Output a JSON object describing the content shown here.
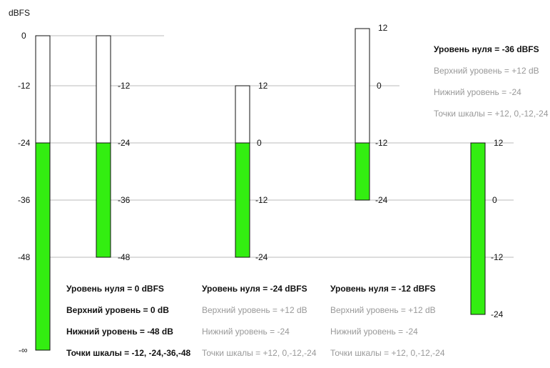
{
  "axis_title": "dBFS",
  "colors": {
    "fill": "#33ee11",
    "grid": "#bbbbbb",
    "bar_border": "#111111",
    "muted_text": "#999999"
  },
  "left_scale": [
    "0",
    "-12",
    "-24",
    "-36",
    "-48",
    "-∞"
  ],
  "meters": [
    {
      "id": "m1",
      "zero_level_dbfs": 0,
      "top_db": 0,
      "bottom_db": -48,
      "fill_to_dbfs": -24,
      "scale_labels": [
        "-12",
        "-24",
        "-36",
        "-48"
      ]
    },
    {
      "id": "m2",
      "zero_level_dbfs": -24,
      "top_db": 12,
      "bottom_db": -24,
      "fill_to_dbfs": -24,
      "scale_labels": [
        "12",
        "0",
        "-12",
        "-24"
      ]
    },
    {
      "id": "m3",
      "zero_level_dbfs": -12,
      "top_db": 12,
      "bottom_db": -24,
      "fill_to_dbfs": -24,
      "scale_labels": [
        "12",
        "0",
        "-12",
        "-24"
      ]
    },
    {
      "id": "m4",
      "zero_level_dbfs": -36,
      "top_db": 12,
      "bottom_db": -24,
      "fill_to_dbfs": -24,
      "scale_labels": [
        "12",
        "0",
        "-12",
        "-24"
      ]
    }
  ],
  "captions": {
    "c1": {
      "zero": "Уровень нуля = 0 dBFS",
      "upper": "Верхний уровень = 0 dB",
      "lower": "Нижний уровень = -48 dB",
      "points": "Точки шкалы = -12, -24,-36,-48"
    },
    "c2": {
      "zero": "Уровень нуля = -24 dBFS",
      "upper": "Верхний уровень = +12 dB",
      "lower": "Нижний уровень = -24",
      "points": "Точки шкалы = +12, 0,-12,-24"
    },
    "c3": {
      "zero": "Уровень нуля = -12 dBFS",
      "upper": "Верхний уровень = +12 dB",
      "lower": "Нижний уровень = -24",
      "points": "Точки шкалы = +12, 0,-12,-24"
    },
    "c4": {
      "zero": "Уровень нуля = -36 dBFS",
      "upper": "Верхний уровень = +12 dB",
      "lower": "Нижний уровень = -24",
      "points": "Точки шкалы = +12, 0,-12,-24"
    }
  }
}
